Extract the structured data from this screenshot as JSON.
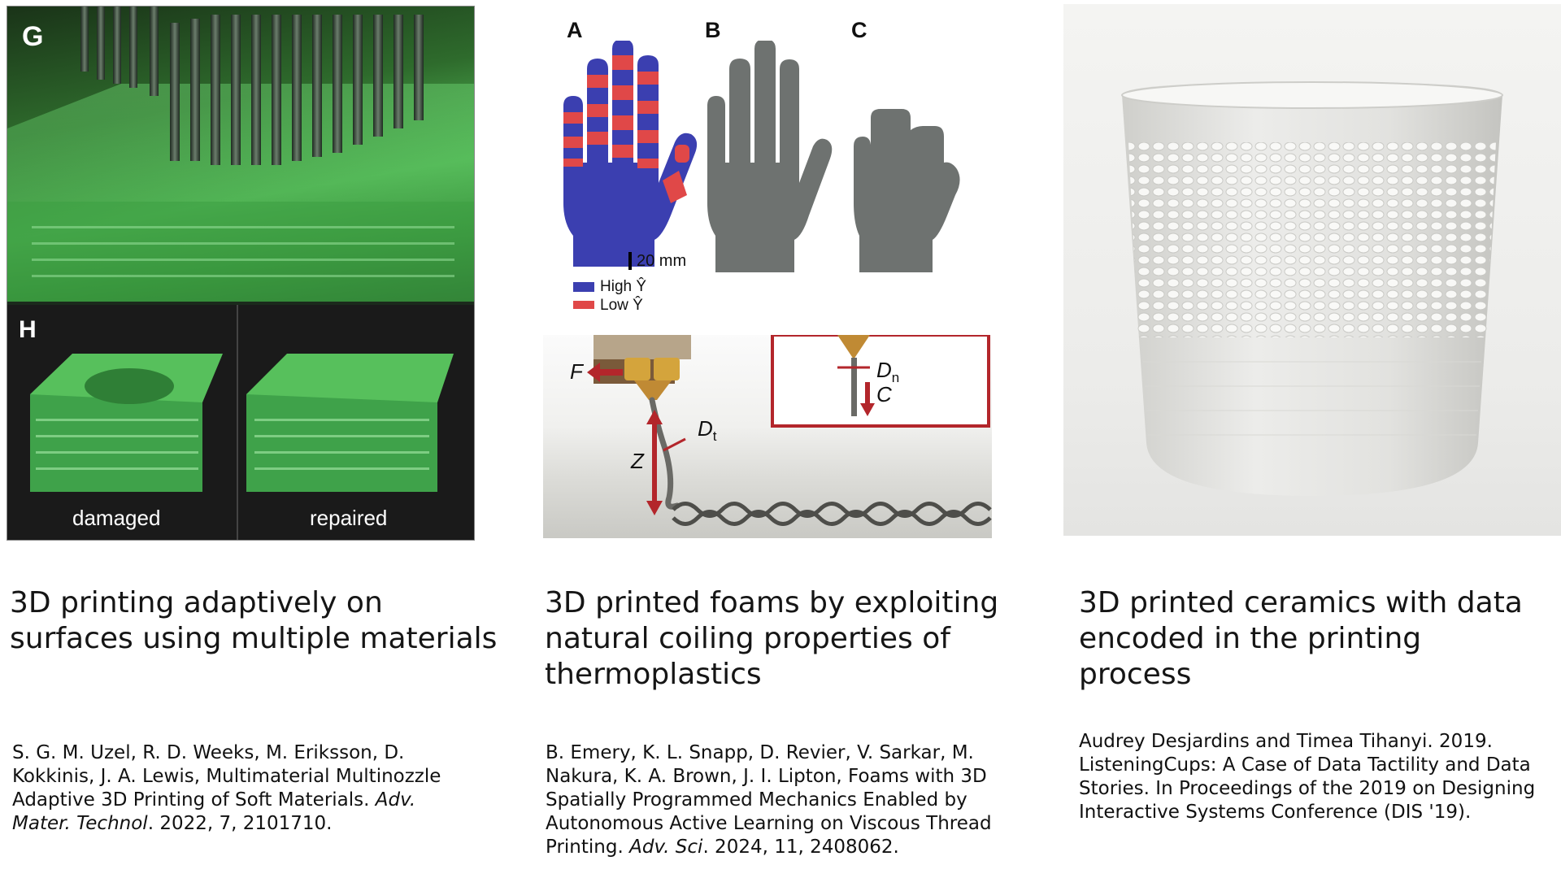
{
  "col1": {
    "panel_g": "G",
    "panel_h": "H",
    "label_damaged": "damaged",
    "label_repaired": "repaired",
    "title": "3D printing adaptively on surfaces using multiple materials",
    "cite_before": "S. G. M. Uzel, R. D. Weeks, M. Eriksson, D. Kokkinis, J. A. Lewis, Multimaterial Multinozzle Adaptive 3D Printing of Soft Materials. ",
    "cite_journal": "Adv. Mater. Technol",
    "cite_after": ". 2022, 7, 2101710."
  },
  "col2": {
    "panel_a": "A",
    "panel_b": "B",
    "panel_c": "C",
    "scale_label": "20 mm",
    "legend_high": "High Ŷ",
    "legend_low": "Low Ŷ",
    "label_f": "F",
    "label_dt": "D",
    "label_dt_sub": "t",
    "label_z": "Z",
    "label_dn": "D",
    "label_dn_sub": "n",
    "label_c": "C",
    "title": "3D printed foams by exploiting natural coiling properties of thermoplastics",
    "cite_before": "B. Emery, K. L. Snapp, D. Revier, V. Sarkar, M. Nakura, K. A. Brown, J. I. Lipton, Foams with 3D Spatially Programmed Mechanics Enabled by Autonomous Active Learning on Viscous Thread Printing. ",
    "cite_journal": "Adv. Sci",
    "cite_after": ". 2024, 11, 2408062."
  },
  "col3": {
    "title": "3D printed ceramics with data encoded in the printing process",
    "cite": "Audrey Desjardins and Timea Tihanyi. 2019. ListeningCups: A Case of Data Tactility and Data Stories. In Proceedings of the 2019 on Designing Interactive Systems Conference (DIS '19)."
  },
  "colors": {
    "green": "#3fa24a",
    "hand_blue": "#3b3fb0",
    "hand_red": "#e04848",
    "diagram_red": "#b3262b"
  }
}
